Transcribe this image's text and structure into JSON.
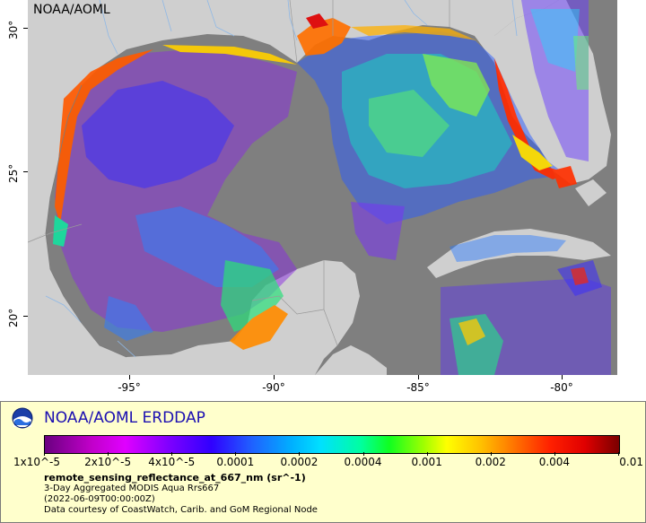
{
  "map": {
    "watermark": "NOAA/AOML",
    "y_ticks": [
      "30°",
      "25°",
      "20°"
    ],
    "x_ticks": [
      "-95°",
      "-90°",
      "-85°",
      "-80°"
    ],
    "colors": {
      "ocean_nodata": "#7f7f7f",
      "land": "#cfcfcf",
      "coast": "#888888",
      "rivers": "#8fb8e6"
    }
  },
  "legend": {
    "title": "NOAA/AOML ERDDAP",
    "colorbar_ticks": [
      "1x10^-5",
      "2x10^-5",
      "4x10^-5",
      "0.0001",
      "0.0002",
      "0.0004",
      "0.001",
      "0.002",
      "0.004",
      "0.01"
    ],
    "variable": "remote_sensing_reflectance_at_667_nm (sr^-1)",
    "dataset": "3-Day Aggregated MODIS Aqua Rrs667",
    "time": "(2022-06-09T00:00:00Z)",
    "credit": "Data courtesy of CoastWatch, Carib. and GoM Regional Node"
  }
}
